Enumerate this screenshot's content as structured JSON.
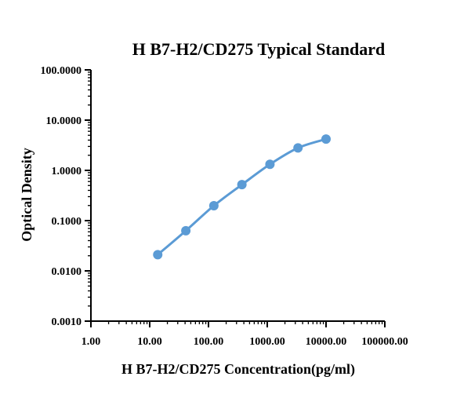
{
  "chart_data": {
    "type": "scatter",
    "title": "H B7-H2/CD275 Typical Standard",
    "xlabel": "H B7-H2/CD275 Concentration(pg/ml)",
    "ylabel": "Optical Density",
    "x_scale": "log",
    "y_scale": "log",
    "xlim": [
      1,
      100000
    ],
    "ylim": [
      0.001,
      100
    ],
    "x_tick_labels": [
      "1.00",
      "10.00",
      "100.00",
      "1000.00",
      "10000.00",
      "100000.00"
    ],
    "y_tick_labels": [
      "0.0010",
      "0.0100",
      "0.1000",
      "1.0000",
      "10.0000",
      "100.0000"
    ],
    "grid": false,
    "legend": "none",
    "series": [
      {
        "color": "#5b9bd5",
        "x": [
          13.7,
          41.2,
          123.5,
          370.4,
          1111.1,
          3333.3,
          10000
        ],
        "y": [
          0.021,
          0.063,
          0.198,
          0.52,
          1.32,
          2.8,
          4.2
        ]
      }
    ]
  }
}
